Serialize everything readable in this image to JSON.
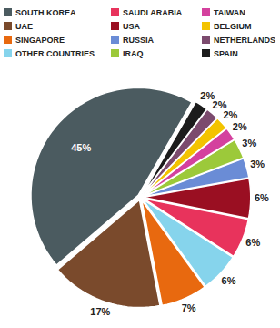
{
  "chart_data": {
    "type": "pie",
    "categories": [
      "SOUTH KOREA",
      "UAE",
      "SINGAPORE",
      "OTHER COUNTRIES",
      "SAUDI ARABIA",
      "USA",
      "RUSSIA",
      "IRAQ",
      "TAIWAN",
      "BELGIUM",
      "NETHERLANDS",
      "SPAIN"
    ],
    "values": [
      45,
      17,
      7,
      6,
      6,
      6,
      3,
      3,
      2,
      2,
      2,
      2
    ],
    "value_labels": [
      "45%",
      "17%",
      "7%",
      "6%",
      "6%",
      "6%",
      "3%",
      "3%",
      "2%",
      "2%",
      "2%",
      "2%"
    ],
    "colors": [
      "#4b5b60",
      "#7a4a2c",
      "#e8690f",
      "#86d4ec",
      "#e8335c",
      "#9a0f22",
      "#6a8cd6",
      "#9cc93a",
      "#d4419e",
      "#f3c300",
      "#7c4b6e",
      "#1c1c1c"
    ],
    "data_labels": true,
    "legend": "top"
  }
}
